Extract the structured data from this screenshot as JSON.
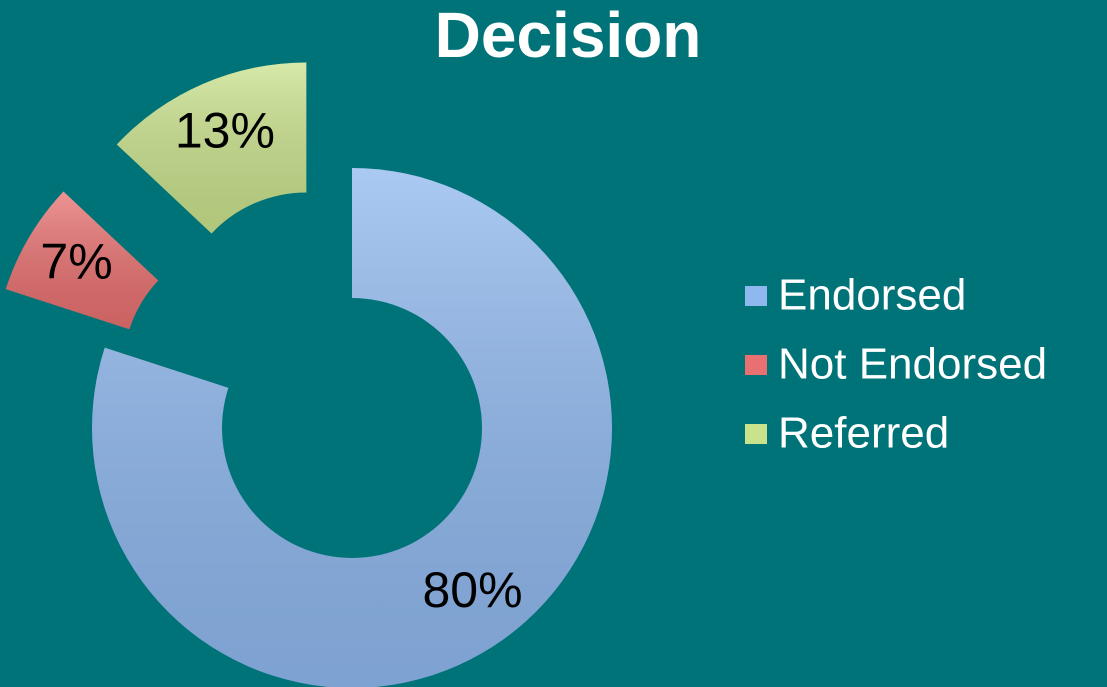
{
  "chart_data": {
    "type": "donut",
    "title": "Decision",
    "categories": [
      "Endorsed",
      "Not Endorsed",
      "Referred"
    ],
    "values": [
      80,
      7,
      13
    ],
    "value_labels": [
      "80%",
      "7%",
      "13%"
    ],
    "colors": [
      "#8fb8ee",
      "#e87070",
      "#c9e28c"
    ],
    "legend": "right"
  }
}
